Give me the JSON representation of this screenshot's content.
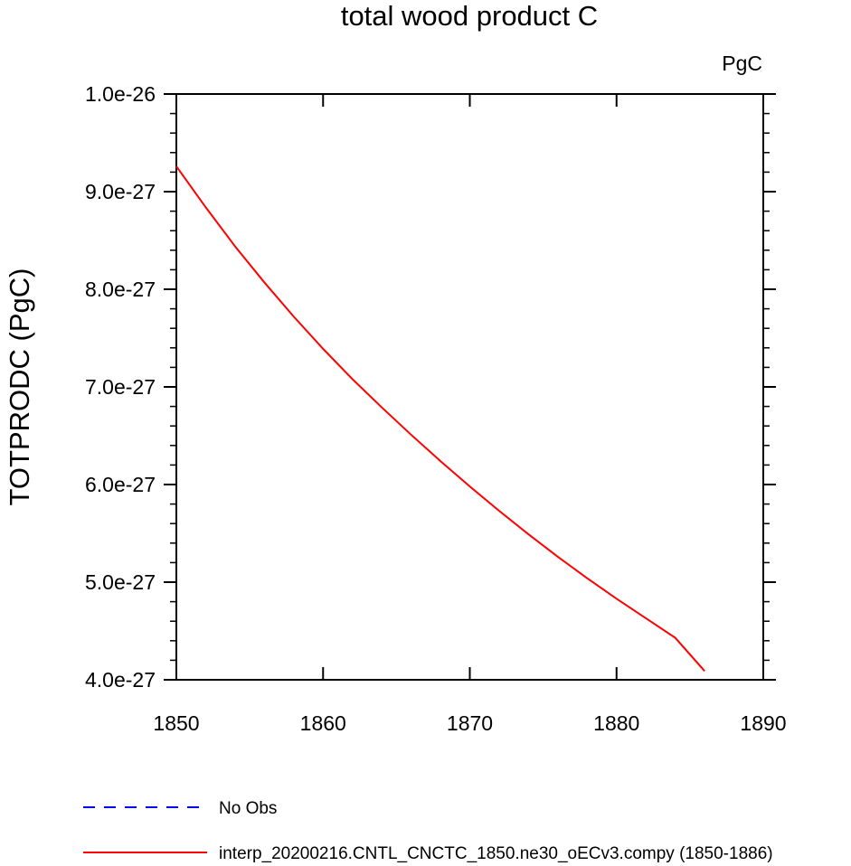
{
  "chart_data": {
    "type": "line",
    "title": "total wood product C",
    "units_label": "PgC",
    "ylabel": "TOTPRODC  (PgC)",
    "xlabel": "",
    "xlim": [
      1850,
      1890
    ],
    "ylim": [
      4e-27,
      1e-26
    ],
    "x_ticks": [
      1850,
      1860,
      1870,
      1880,
      1890
    ],
    "x_tick_labels": [
      "1850",
      "1860",
      "1870",
      "1880",
      "1890"
    ],
    "y_ticks": [
      4e-27,
      5e-27,
      6e-27,
      7e-27,
      8e-27,
      9e-27,
      1e-26
    ],
    "y_tick_labels": [
      "4.0e-27",
      "5.0e-27",
      "6.0e-27",
      "7.0e-27",
      "8.0e-27",
      "9.0e-27",
      "1.0e-26"
    ],
    "grid": false,
    "legend_position": "bottom",
    "series": [
      {
        "name": "interp_20200216.CNTL_CNCTC_1850.ne30_oECv3.compy (1850-1886)",
        "color": "#ff0000",
        "dash": "solid",
        "x": [
          1850,
          1852,
          1854,
          1856,
          1858,
          1860,
          1862,
          1864,
          1866,
          1868,
          1870,
          1872,
          1874,
          1876,
          1878,
          1880,
          1882,
          1884,
          1886
        ],
        "y": [
          9.26e-27,
          8.84e-27,
          8.44e-27,
          8.07e-27,
          7.72e-27,
          7.39e-27,
          7.08e-27,
          6.79e-27,
          6.51e-27,
          6.24e-27,
          5.98e-27,
          5.73e-27,
          5.49e-27,
          5.26e-27,
          5.04e-27,
          4.83e-27,
          4.63e-27,
          4.43e-27,
          4.09e-27
        ]
      }
    ],
    "legend": [
      {
        "label": "No Obs",
        "color": "#0000ff",
        "dash": "dashed"
      },
      {
        "label": "interp_20200216.CNTL_CNCTC_1850.ne30_oECv3.compy (1850-1886)",
        "color": "#ff0000",
        "dash": "solid"
      }
    ]
  }
}
